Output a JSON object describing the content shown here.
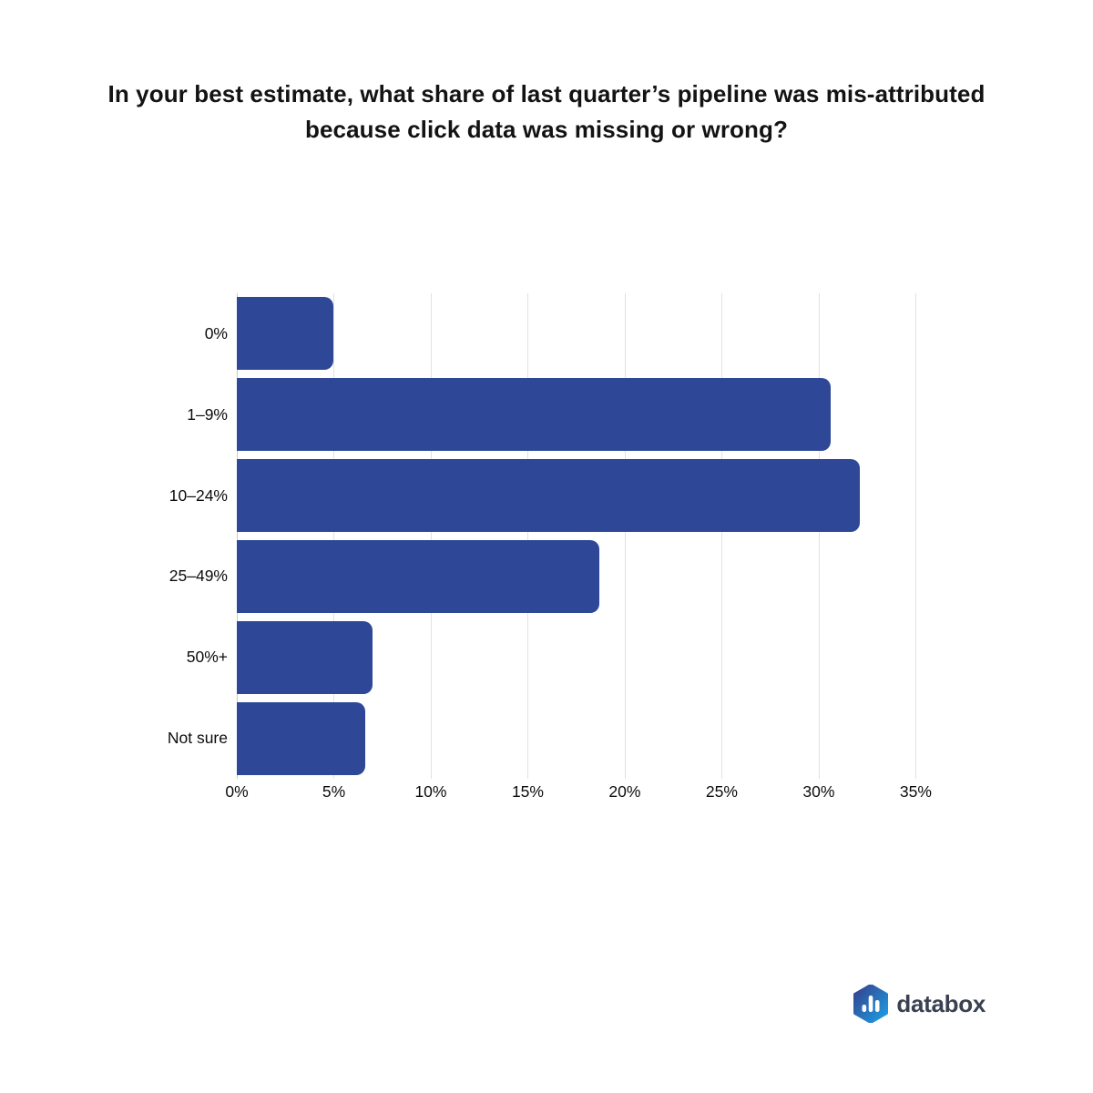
{
  "title": {
    "line1": "In your best estimate, what share of last quarter’s pipeline was mis-attributed",
    "line2": "because click data was missing or wrong?"
  },
  "chart_data": {
    "type": "bar",
    "orientation": "horizontal",
    "title": "In your best estimate, what share of last quarter’s pipeline was mis-attributed because click data was missing or wrong?",
    "categories": [
      "0%",
      "1–9%",
      "10–24%",
      "25–49%",
      "50%+",
      "Not sure"
    ],
    "values": [
      5.0,
      30.6,
      32.1,
      18.7,
      7.0,
      6.6
    ],
    "value_unit": "% of respondents",
    "tick_values": [
      0,
      5,
      10,
      15,
      20,
      25,
      30,
      35
    ],
    "tick_labels": [
      "0%",
      "5%",
      "10%",
      "15%",
      "20%",
      "25%",
      "30%",
      "35%"
    ],
    "xlim": [
      0,
      37
    ],
    "bar_color": "#2e4897",
    "gridline_color": "#e2e2e2",
    "grid": "vertical-only",
    "legend": "none"
  },
  "logo": {
    "text": "databox",
    "icon": "databox-hexagon-bar-chart-icon",
    "icon_gradient_start": "#373e8a",
    "icon_gradient_end": "#1ba2e8",
    "text_color": "#3a4150"
  }
}
